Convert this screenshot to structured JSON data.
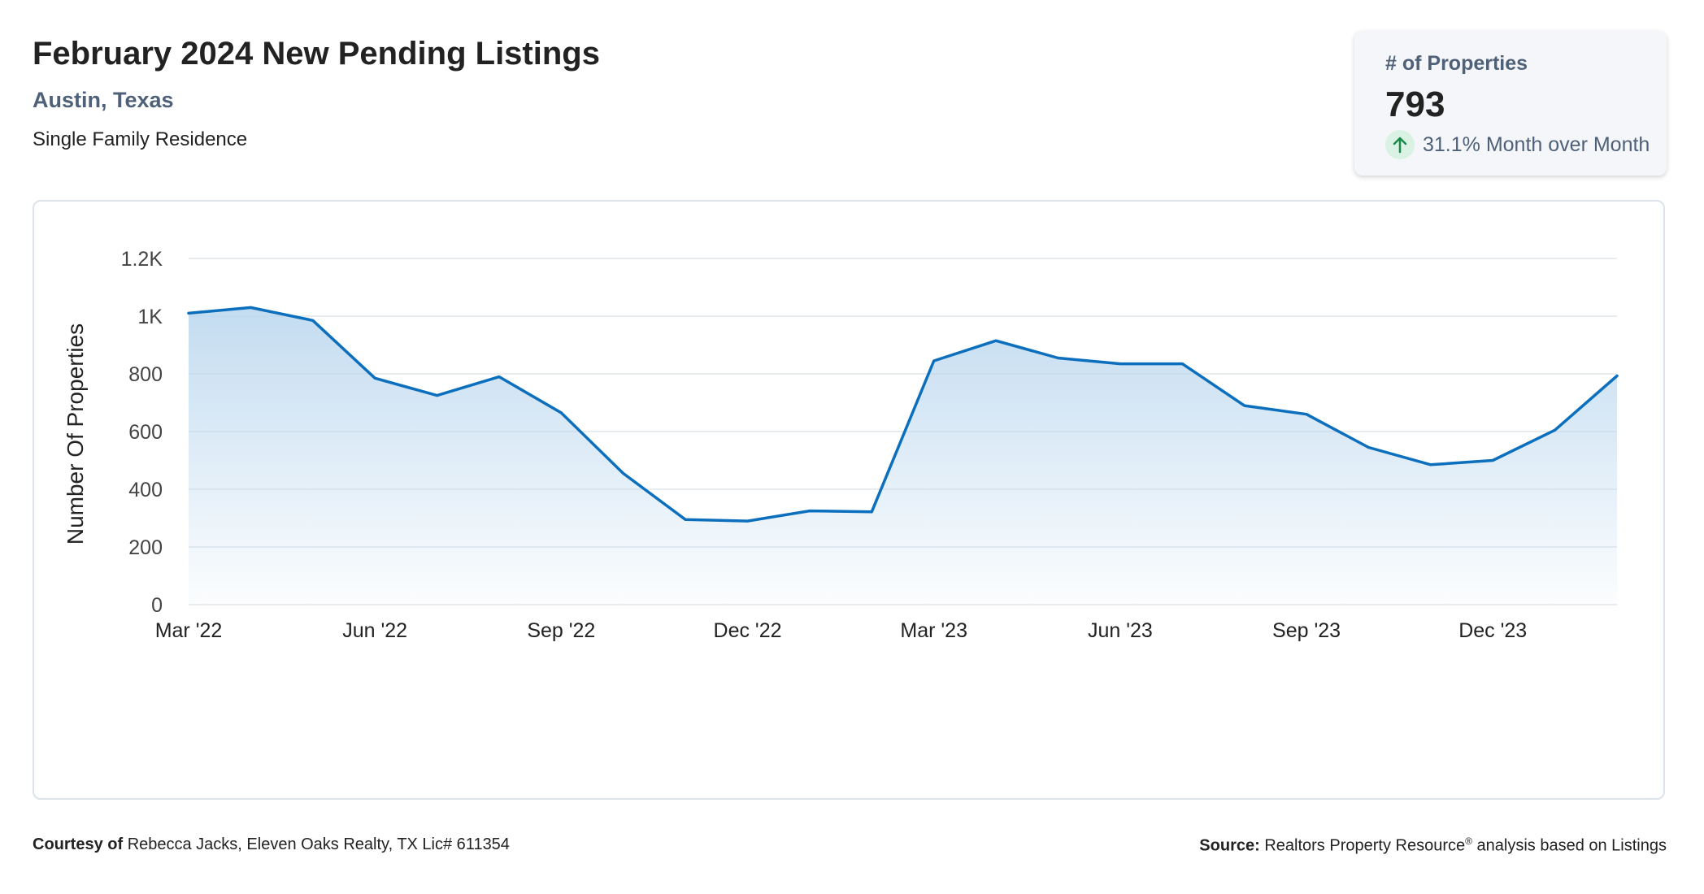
{
  "header": {
    "title": "February 2024 New Pending Listings",
    "location": "Austin, Texas",
    "property_type": "Single Family Residence"
  },
  "stat": {
    "label": "# of Properties",
    "value": "793",
    "change": "31.1% Month over Month",
    "trend": "up",
    "arrow_color": "#1a8a4a",
    "badge_color": "#d9f2e3"
  },
  "footer": {
    "courtesy_label": "Courtesy of",
    "courtesy_text": "Rebecca Jacks, Eleven Oaks Realty, TX Lic# 611354",
    "source_label": "Source:",
    "source_text": "Realtors Property Resource",
    "source_mark": "®",
    "source_suffix": "analysis based on Listings"
  },
  "colors": {
    "line": "#0b6fbd",
    "fill_top": "#b9d6ee",
    "grid": "#e1e5ea",
    "card_border": "#dde3ea"
  },
  "chart_data": {
    "type": "area",
    "ylabel": "Number Of Properties",
    "ylim": [
      0,
      1200
    ],
    "y_ticks": [
      0,
      200,
      400,
      600,
      800,
      1000,
      1200
    ],
    "y_tick_labels": [
      "0",
      "200",
      "400",
      "600",
      "800",
      "1K",
      "1.2K"
    ],
    "x": [
      "Mar '22",
      "Apr '22",
      "May '22",
      "Jun '22",
      "Jul '22",
      "Aug '22",
      "Sep '22",
      "Oct '22",
      "Nov '22",
      "Dec '22",
      "Jan '23",
      "Feb '23",
      "Mar '23",
      "Apr '23",
      "May '23",
      "Jun '23",
      "Jul '23",
      "Aug '23",
      "Sep '23",
      "Oct '23",
      "Nov '23",
      "Dec '23",
      "Jan '24",
      "Feb '24"
    ],
    "x_tick_labels": [
      "Mar '22",
      "Jun '22",
      "Sep '22",
      "Dec '22",
      "Mar '23",
      "Jun '23",
      "Sep '23",
      "Dec '23"
    ],
    "x_tick_indices": [
      0,
      3,
      6,
      9,
      12,
      15,
      18,
      21
    ],
    "series": [
      {
        "values": [
          1010,
          1030,
          985,
          785,
          725,
          790,
          665,
          455,
          295,
          290,
          325,
          322,
          845,
          915,
          855,
          835,
          835,
          690,
          660,
          545,
          485,
          500,
          605,
          793
        ]
      }
    ],
    "grid": true
  }
}
